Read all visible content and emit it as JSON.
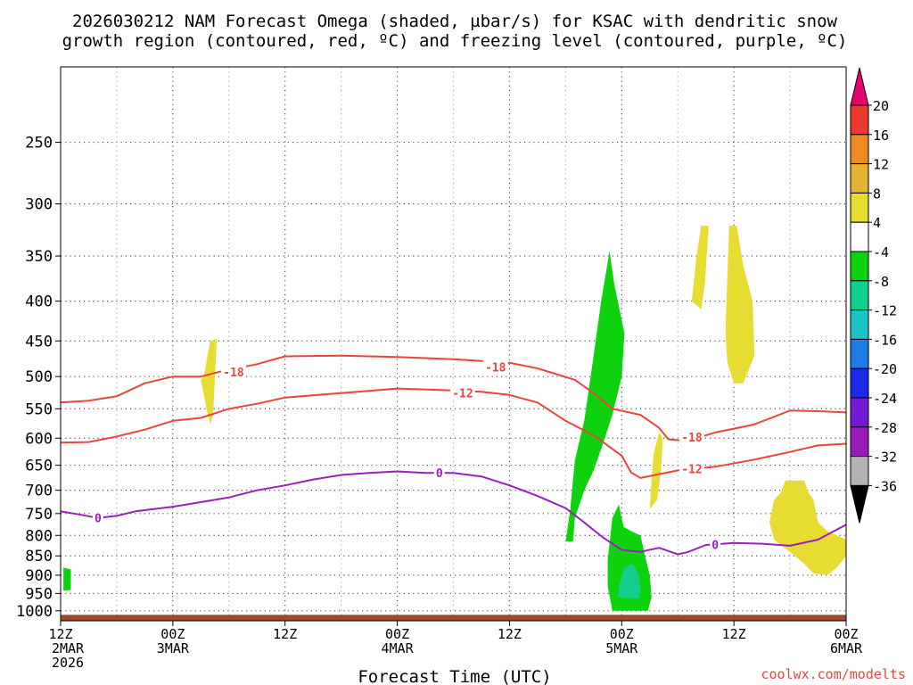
{
  "chart_data": {
    "type": "contour",
    "title_line1": "2026030212 NAM Forecast Omega (shaded, µbar/s) for KSAC with dendritic snow",
    "title_line2": "growth region (contoured, red, ºC) and freezing level (contoured, purple, ºC)",
    "xlabel": "Forecast Time (UTC)",
    "credit": "coolwx.com/modelts",
    "y_axis": {
      "type": "log-pressure",
      "unit": "hPa",
      "range": [
        1030,
        200
      ],
      "ticks": [
        {
          "value": 250,
          "label": "250"
        },
        {
          "value": 300,
          "label": "300"
        },
        {
          "value": 350,
          "label": "350"
        },
        {
          "value": 400,
          "label": "400"
        },
        {
          "value": 450,
          "label": "450"
        },
        {
          "value": 500,
          "label": "500"
        },
        {
          "value": 550,
          "label": "550"
        },
        {
          "value": 600,
          "label": "600"
        },
        {
          "value": 650,
          "label": "650"
        },
        {
          "value": 700,
          "label": "700"
        },
        {
          "value": 750,
          "label": "750"
        },
        {
          "value": 800,
          "label": "800"
        },
        {
          "value": 850,
          "label": "850"
        },
        {
          "value": 900,
          "label": "900"
        },
        {
          "value": 950,
          "label": "950"
        },
        {
          "value": 1000,
          "label": "1000"
        }
      ]
    },
    "x_axis": {
      "unit": "forecast hour",
      "range": [
        0,
        84
      ],
      "ticks": [
        {
          "value": 0,
          "lines": [
            "12Z",
            "2MAR",
            "2026"
          ]
        },
        {
          "value": 12,
          "lines": [
            "00Z",
            "3MAR"
          ]
        },
        {
          "value": 24,
          "lines": [
            "12Z"
          ]
        },
        {
          "value": 36,
          "lines": [
            "00Z",
            "4MAR"
          ]
        },
        {
          "value": 48,
          "lines": [
            "12Z"
          ]
        },
        {
          "value": 60,
          "lines": [
            "00Z",
            "5MAR"
          ]
        },
        {
          "value": 72,
          "lines": [
            "12Z"
          ]
        },
        {
          "value": 84,
          "lines": [
            "00Z",
            "6MAR"
          ]
        }
      ],
      "minor_grid_every": 6
    },
    "contours": [
      {
        "name": "-18 C isotherm",
        "color": "#e8453c",
        "label": "-18",
        "label_at": [
          [
            18.5,
            493
          ],
          [
            46.5,
            486
          ],
          [
            67.5,
            598
          ]
        ],
        "points": [
          [
            0,
            540
          ],
          [
            3,
            537
          ],
          [
            6,
            530
          ],
          [
            9,
            510
          ],
          [
            12,
            500
          ],
          [
            15,
            500
          ],
          [
            17,
            493
          ],
          [
            21,
            482
          ],
          [
            24,
            471
          ],
          [
            30,
            470
          ],
          [
            36,
            472
          ],
          [
            42,
            475
          ],
          [
            48,
            480
          ],
          [
            51,
            488
          ],
          [
            55,
            505
          ],
          [
            57,
            525
          ],
          [
            59,
            550
          ],
          [
            62,
            560
          ],
          [
            64,
            582
          ],
          [
            65,
            602
          ],
          [
            67,
            605
          ],
          [
            70,
            590
          ],
          [
            74,
            577
          ],
          [
            76,
            565
          ],
          [
            78,
            553
          ],
          [
            81,
            554
          ],
          [
            84,
            556
          ]
        ]
      },
      {
        "name": "-12 C isotherm",
        "color": "#e8453c",
        "label": "-12",
        "label_at": [
          [
            43,
            525
          ],
          [
            67.5,
            657
          ]
        ],
        "points": [
          [
            0,
            608
          ],
          [
            3,
            607
          ],
          [
            6,
            597
          ],
          [
            9,
            585
          ],
          [
            12,
            570
          ],
          [
            15,
            565
          ],
          [
            18,
            550
          ],
          [
            21,
            542
          ],
          [
            24,
            532
          ],
          [
            30,
            525
          ],
          [
            36,
            518
          ],
          [
            42,
            521
          ],
          [
            45,
            523
          ],
          [
            48,
            528
          ],
          [
            51,
            540
          ],
          [
            54,
            570
          ],
          [
            57,
            595
          ],
          [
            60,
            632
          ],
          [
            61,
            664
          ],
          [
            62,
            675
          ],
          [
            66,
            660
          ],
          [
            70,
            653
          ],
          [
            74,
            640
          ],
          [
            78,
            625
          ],
          [
            81,
            613
          ],
          [
            84,
            610
          ]
        ]
      },
      {
        "name": "0 C freezing level",
        "color": "#9b1fbf",
        "label": "0",
        "label_at": [
          [
            4,
            759
          ],
          [
            40.5,
            665
          ],
          [
            70,
            822
          ]
        ],
        "points": [
          [
            0,
            745
          ],
          [
            2,
            752
          ],
          [
            4,
            760
          ],
          [
            6,
            755
          ],
          [
            8,
            745
          ],
          [
            12,
            735
          ],
          [
            15,
            725
          ],
          [
            18,
            715
          ],
          [
            21,
            700
          ],
          [
            24,
            690
          ],
          [
            27,
            678
          ],
          [
            30,
            669
          ],
          [
            33,
            665
          ],
          [
            36,
            662
          ],
          [
            39,
            665
          ],
          [
            42,
            665
          ],
          [
            45,
            672
          ],
          [
            48,
            690
          ],
          [
            51,
            712
          ],
          [
            54,
            738
          ],
          [
            56,
            770
          ],
          [
            58,
            805
          ],
          [
            60,
            835
          ],
          [
            62,
            840
          ],
          [
            64,
            830
          ],
          [
            66,
            846
          ],
          [
            67,
            841
          ],
          [
            69,
            823
          ],
          [
            72,
            818
          ],
          [
            75,
            820
          ],
          [
            78,
            825
          ],
          [
            81,
            810
          ],
          [
            84,
            775
          ]
        ]
      }
    ],
    "omega_regions": [
      {
        "value": "-4 to -8",
        "color": "#0fd20f",
        "points": [
          [
            0.3,
            880
          ],
          [
            1.1,
            885
          ],
          [
            1.1,
            940
          ],
          [
            0.3,
            942
          ]
        ]
      },
      {
        "value": "-4 to -8",
        "color": "#0fd20f",
        "points": [
          [
            54,
            815
          ],
          [
            54.5,
            740
          ],
          [
            55,
            640
          ],
          [
            56,
            570
          ],
          [
            57,
            470
          ],
          [
            57.8,
            400
          ],
          [
            58.7,
            345
          ],
          [
            59.2,
            380
          ],
          [
            60.3,
            440
          ],
          [
            60,
            500
          ],
          [
            59,
            560
          ],
          [
            58,
            610
          ],
          [
            57,
            660
          ],
          [
            56,
            700
          ],
          [
            55,
            760
          ],
          [
            54.8,
            815
          ]
        ]
      },
      {
        "value": "-4 to -8",
        "color": "#0fd20f",
        "points": [
          [
            59,
            1000
          ],
          [
            58.5,
            930
          ],
          [
            58.5,
            860
          ],
          [
            59,
            760
          ],
          [
            59.7,
            730
          ],
          [
            60.2,
            780
          ],
          [
            61,
            790
          ],
          [
            62,
            800
          ],
          [
            62.5,
            850
          ],
          [
            63,
            900
          ],
          [
            63.2,
            960
          ],
          [
            62.8,
            1000
          ]
        ]
      },
      {
        "value": "-8 to -12",
        "color": "#13cf8e",
        "points": [
          [
            59.6,
            960
          ],
          [
            59.8,
            920
          ],
          [
            60.3,
            880
          ],
          [
            61.2,
            870
          ],
          [
            61.8,
            900
          ],
          [
            62,
            940
          ],
          [
            61.8,
            965
          ]
        ]
      },
      {
        "value": "4 to 8",
        "color": "#e6dc32",
        "points": [
          [
            15.3,
            500
          ],
          [
            16,
            450
          ],
          [
            16.7,
            447
          ],
          [
            16.5,
            500
          ],
          [
            16.3,
            560
          ],
          [
            16,
            575
          ],
          [
            15.6,
            550
          ],
          [
            15,
            505
          ]
        ]
      },
      {
        "value": "4 to 8",
        "color": "#e6dc32",
        "points": [
          [
            63,
            740
          ],
          [
            63.2,
            680
          ],
          [
            63.4,
            630
          ],
          [
            64,
            590
          ],
          [
            64.4,
            600
          ],
          [
            64.2,
            660
          ],
          [
            63.8,
            720
          ]
        ]
      },
      {
        "value": "4 to 8",
        "color": "#e6dc32",
        "points": [
          [
            67.5,
            400
          ],
          [
            68,
            350
          ],
          [
            68.5,
            320
          ],
          [
            69.3,
            320
          ],
          [
            68.9,
            380
          ],
          [
            68.5,
            410
          ]
        ]
      },
      {
        "value": "4 to 8",
        "color": "#e6dc32",
        "points": [
          [
            71.1,
            440
          ],
          [
            71.3,
            370
          ],
          [
            71.5,
            320
          ],
          [
            72.3,
            320
          ],
          [
            73,
            360
          ],
          [
            74,
            400
          ],
          [
            74.2,
            470
          ],
          [
            73,
            510
          ],
          [
            72,
            510
          ],
          [
            71.3,
            480
          ]
        ]
      },
      {
        "value": "4 to 8",
        "color": "#e6dc32",
        "points": [
          [
            75.8,
            770
          ],
          [
            76.3,
            720
          ],
          [
            77,
            705
          ],
          [
            77.5,
            680
          ],
          [
            79.5,
            680
          ],
          [
            80,
            705
          ],
          [
            80.5,
            720
          ],
          [
            81,
            770
          ],
          [
            82,
            790
          ],
          [
            84,
            810
          ],
          [
            84,
            850
          ],
          [
            83,
            880
          ],
          [
            82,
            900
          ],
          [
            80.5,
            895
          ],
          [
            79.5,
            870
          ],
          [
            78,
            840
          ],
          [
            76.3,
            810
          ]
        ]
      }
    ],
    "terrain": {
      "color": "#9e4a2a",
      "surface_pressure": 1012
    },
    "colorbar": {
      "label_values": [
        "20",
        "16",
        "12",
        "8",
        "4",
        "-4",
        "-8",
        "-12",
        "-16",
        "-20",
        "-24",
        "-28",
        "-32",
        "-36"
      ],
      "bands": [
        "#e8006e",
        "#ec3a2e",
        "#ef8a22",
        "#e6b435",
        "#e6dc32",
        "#ffffff",
        "#0fd20f",
        "#13cf8e",
        "#1bc4c4",
        "#1e7ce8",
        "#1a2ae6",
        "#7419d6",
        "#9a1ab8",
        "#b4b4b4",
        "#000000"
      ]
    }
  }
}
